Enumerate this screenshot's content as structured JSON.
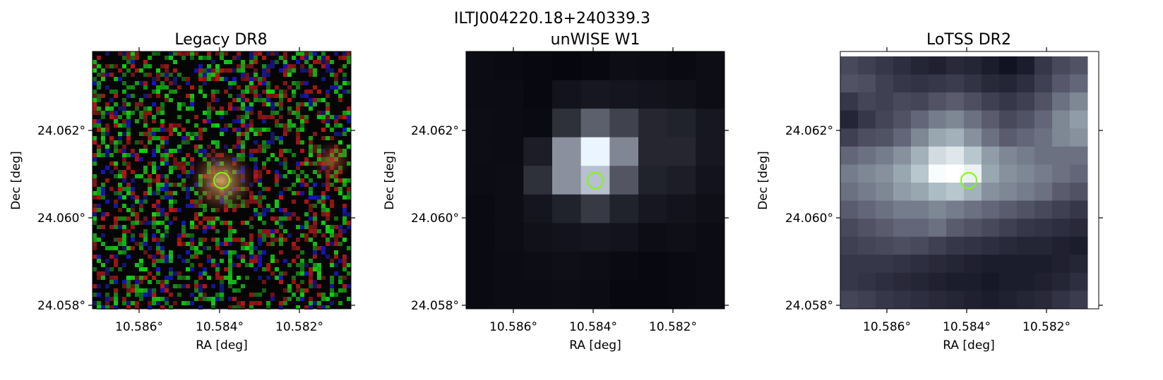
{
  "figure": {
    "title": "ILTJ004220.18+240339.3"
  },
  "panels": [
    {
      "id": "legacy",
      "title": "Legacy DR8",
      "xlabel": "RA [deg]",
      "ylabel": "Dec [deg]",
      "xticks": [
        "10.586°",
        "10.584°",
        "10.582°"
      ],
      "yticks": [
        "24.062°",
        "24.060°",
        "24.058°"
      ],
      "image": "rgb optical cutout with noise and a faint orange source at center"
    },
    {
      "id": "unwise",
      "title": "unWISE W1",
      "xlabel": "RA [deg]",
      "ylabel": "Dec [deg]",
      "xticks": [
        "10.586°",
        "10.584°",
        "10.582°"
      ],
      "yticks": [
        "24.062°",
        "24.060°",
        "24.058°"
      ],
      "image": "coarse grayscale pixel map with bright central source"
    },
    {
      "id": "lotss",
      "title": "LoTSS DR2",
      "xlabel": "RA [deg]",
      "ylabel": "Dec [deg]",
      "xticks": [
        "10.586°",
        "10.584°",
        "10.582°"
      ],
      "yticks": [
        "24.062°",
        "24.060°",
        "24.058°"
      ],
      "image": "bone-colormap radio map with extended emission and bright center"
    }
  ],
  "colors": {
    "marker": "#7cfc00",
    "background": "#ffffff"
  }
}
